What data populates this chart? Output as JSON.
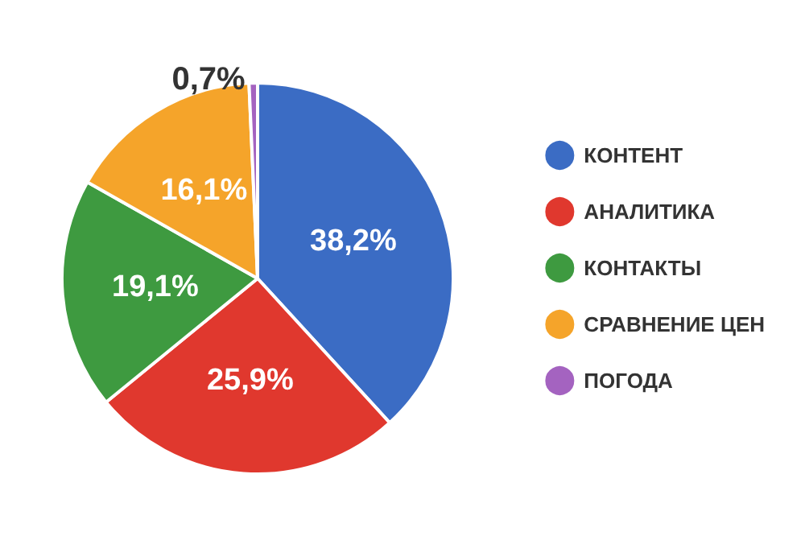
{
  "chart_data": {
    "type": "pie",
    "categories": [
      "КОНТЕНТ",
      "АНАЛИТИКА",
      "КОНТАКТЫ",
      "СРАВНЕНИЕ ЦЕН",
      "ПОГОДА"
    ],
    "values": [
      38.2,
      25.9,
      19.1,
      16.1,
      0.7
    ],
    "value_labels": [
      "38,2%",
      "25,9%",
      "19,1%",
      "16,1%",
      "0,7%"
    ],
    "colors": [
      "#3b6cc4",
      "#e0382e",
      "#3e9a40",
      "#f5a42a",
      "#a463c0"
    ],
    "legend": "right"
  }
}
